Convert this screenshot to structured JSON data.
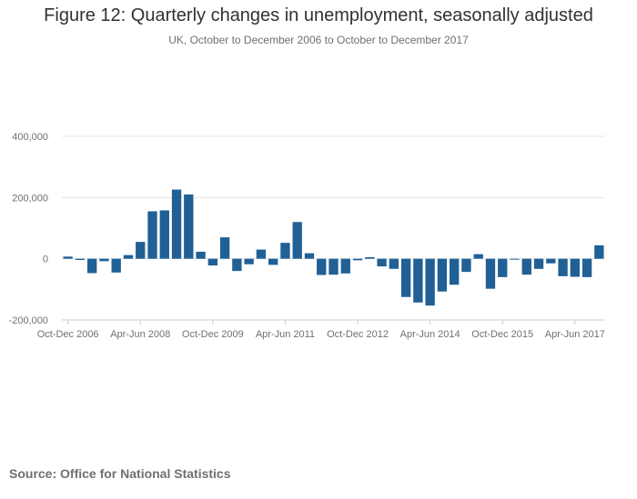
{
  "header": {
    "title": "Figure 12: Quarterly changes in unemployment, seasonally adjusted",
    "subtitle": "UK, October to December 2006 to October to December 2017"
  },
  "footer": {
    "source": "Source: Office for National Statistics"
  },
  "chart_data": {
    "type": "bar",
    "title": "Figure 12: Quarterly changes in unemployment, seasonally adjusted",
    "subtitle": "UK, October to December 2006 to October to December 2017",
    "xlabel": "",
    "ylabel": "",
    "ylim": [
      -200000,
      400000
    ],
    "y_ticks": [
      -200000,
      0,
      200000,
      400000
    ],
    "y_tick_labels": [
      "-200,000",
      "0",
      "200,000",
      "400,000"
    ],
    "x_tick_labels": [
      {
        "category": "Oct-Dec 2006",
        "label": "Oct-Dec 2006"
      },
      {
        "category": "Apr-Jun 2008",
        "label": "Apr-Jun 2008"
      },
      {
        "category": "Oct-Dec 2009",
        "label": "Oct-Dec 2009"
      },
      {
        "category": "Apr-Jun 2011",
        "label": "Apr-Jun 2011"
      },
      {
        "category": "Oct-Dec 2012",
        "label": "Oct-Dec 2012"
      },
      {
        "category": "Apr-Jun 2014",
        "label": "Apr-Jun 2014"
      },
      {
        "category": "Oct-Dec 2015",
        "label": "Oct-Dec 2015"
      },
      {
        "category": "Apr-Jun 2017",
        "label": "Apr-Jun 2017"
      }
    ],
    "grid": true,
    "bar_color": "#206095",
    "categories": [
      "Oct-Dec 2006",
      "Jan-Mar 2007",
      "Apr-Jun 2007",
      "Jul-Sep 2007",
      "Oct-Dec 2007",
      "Jan-Mar 2008",
      "Apr-Jun 2008",
      "Jul-Sep 2008",
      "Oct-Dec 2008",
      "Jan-Mar 2009",
      "Apr-Jun 2009",
      "Jul-Sep 2009",
      "Oct-Dec 2009",
      "Jan-Mar 2010",
      "Apr-Jun 2010",
      "Jul-Sep 2010",
      "Oct-Dec 2010",
      "Jan-Mar 2011",
      "Apr-Jun 2011",
      "Jul-Sep 2011",
      "Oct-Dec 2011",
      "Jan-Mar 2012",
      "Apr-Jun 2012",
      "Jul-Sep 2012",
      "Oct-Dec 2012",
      "Jan-Mar 2013",
      "Apr-Jun 2013",
      "Jul-Sep 2013",
      "Oct-Dec 2013",
      "Jan-Mar 2014",
      "Apr-Jun 2014",
      "Jul-Sep 2014",
      "Oct-Dec 2014",
      "Jan-Mar 2015",
      "Apr-Jun 2015",
      "Jul-Sep 2015",
      "Oct-Dec 2015",
      "Jan-Mar 2016",
      "Apr-Jun 2016",
      "Jul-Sep 2016",
      "Oct-Dec 2016",
      "Jan-Mar 2017",
      "Apr-Jun 2017",
      "Jul-Sep 2017",
      "Oct-Dec 2017"
    ],
    "values": [
      7000,
      -4000,
      -47000,
      -8000,
      -45000,
      12000,
      55000,
      155000,
      158000,
      226000,
      210000,
      23000,
      -22000,
      70000,
      -40000,
      -18000,
      30000,
      -20000,
      52000,
      120000,
      18000,
      -53000,
      -52000,
      -48000,
      -5000,
      5000,
      -25000,
      -33000,
      -125000,
      -143000,
      -153000,
      -107000,
      -85000,
      -43000,
      15000,
      -98000,
      -60000,
      -3000,
      -52000,
      -33000,
      -15000,
      -57000,
      -59000,
      -60000,
      44000
    ]
  }
}
